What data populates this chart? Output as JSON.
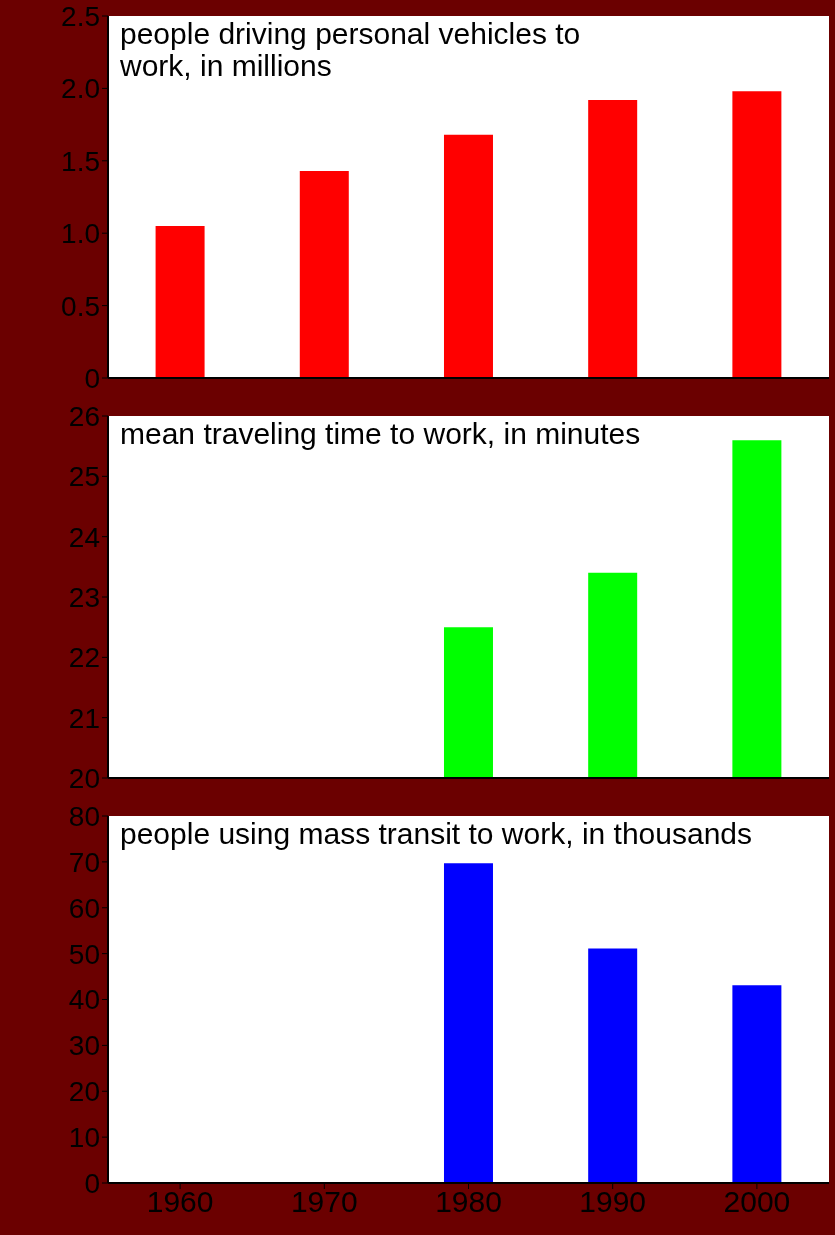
{
  "chart_data": [
    {
      "type": "bar",
      "title": "people driving personal vehicles to work, in millions",
      "categories": [
        "1960",
        "1970",
        "1980",
        "1990",
        "2000"
      ],
      "values": [
        1.05,
        1.43,
        1.68,
        1.92,
        1.98
      ],
      "color": "#ff0000",
      "ylim": [
        0,
        2.5
      ],
      "yticks": [
        0,
        0.5,
        {
          "value": 1,
          "label": "1.0"
        },
        1.5,
        {
          "value": 2,
          "label": "2.0"
        },
        2.5
      ],
      "tick_labels": "y"
    },
    {
      "type": "bar",
      "title": "mean traveling time to work, in minutes",
      "categories": [
        "1960",
        "1970",
        "1980",
        "1990",
        "2000"
      ],
      "values": [
        null,
        null,
        22.5,
        23.4,
        25.6
      ],
      "color": "#00ff00",
      "ylim": [
        20,
        26
      ],
      "yticks": [
        20,
        21,
        22,
        23,
        24,
        25,
        26
      ],
      "tick_labels": "y"
    },
    {
      "type": "bar",
      "title": "people using mass transit to work, in thousands",
      "categories": [
        "1960",
        "1970",
        "1980",
        "1990",
        "2000"
      ],
      "values": [
        null,
        null,
        69.7,
        51.1,
        43.1
      ],
      "color": "#0000ff",
      "ylim": [
        0,
        80
      ],
      "yticks": [
        0,
        10,
        20,
        30,
        40,
        50,
        60,
        70,
        80
      ]
    }
  ]
}
